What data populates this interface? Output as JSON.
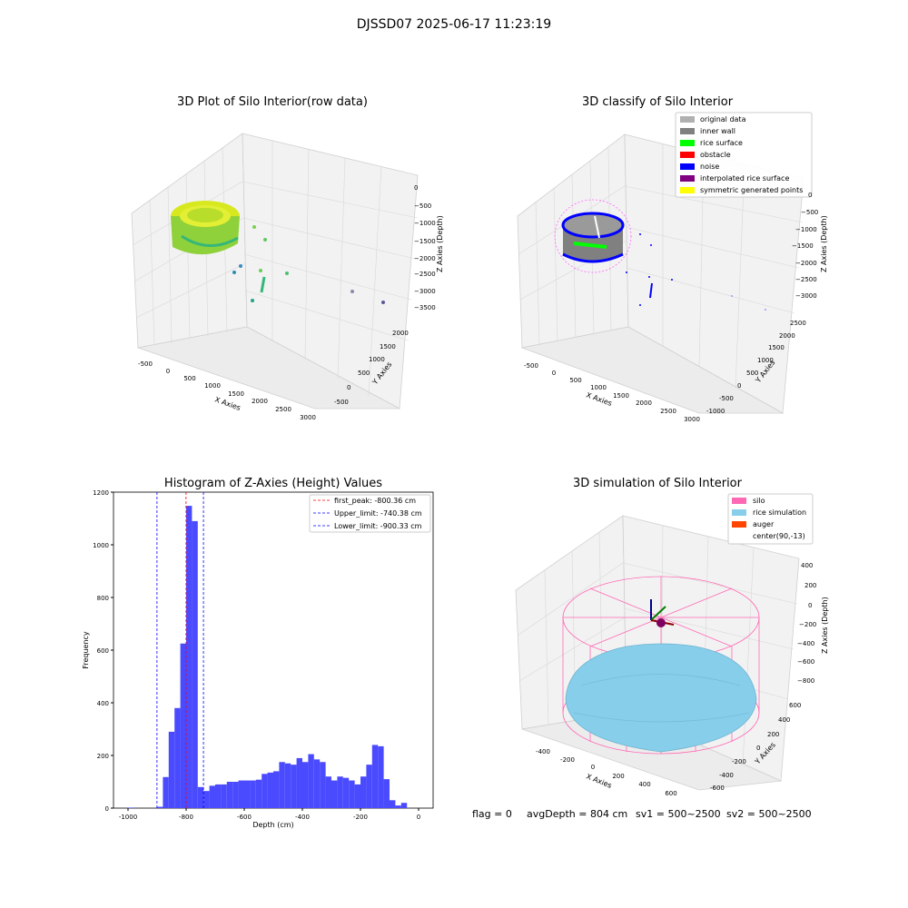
{
  "figure_title": "DJSSD07 2025-06-17 11:23:19",
  "panels": {
    "tl": {
      "title": "3D Plot of Silo Interior(row data)",
      "xlabel": "X Axies",
      "ylabel": "Y Axies",
      "zlabel": "Z Axies (Depth)",
      "xticks": [
        "-500",
        "0",
        "500",
        "1000",
        "1500",
        "2000",
        "2500",
        "3000"
      ],
      "yticks": [
        "-500",
        "0",
        "500",
        "1000",
        "1500",
        "2000"
      ],
      "zticks": [
        "0",
        "−500",
        "−1000",
        "−1500",
        "−2000",
        "−2500",
        "−3000",
        "−3500"
      ]
    },
    "tr": {
      "title": "3D classify of Silo Interior",
      "xlabel": "X Axies",
      "ylabel": "Y Axies",
      "zlabel": "Z Axies (Depth)",
      "xticks": [
        "-500",
        "0",
        "500",
        "1000",
        "1500",
        "2000",
        "2500",
        "3000"
      ],
      "yticks": [
        "-1000",
        "-500",
        "0",
        "500",
        "1000",
        "1500",
        "2000",
        "2500"
      ],
      "zticks": [
        "0",
        "−500",
        "−1000",
        "−1500",
        "−2000",
        "−2500",
        "−3000"
      ],
      "legend": [
        {
          "label": "original data",
          "color": "#b0b0b0"
        },
        {
          "label": "inner wall",
          "color": "#808080"
        },
        {
          "label": "rice surface",
          "color": "#00ff00"
        },
        {
          "label": "obstacle",
          "color": "#ff0000"
        },
        {
          "label": "noise",
          "color": "#0000ff"
        },
        {
          "label": "interpolated rice surface",
          "color": "#800080"
        },
        {
          "label": "symmetric generated points",
          "color": "#ffff00"
        }
      ]
    },
    "br": {
      "title": "3D simulation of Silo Interior",
      "xlabel": "X Axies",
      "ylabel": "Y Axies",
      "zlabel": "Z Axies (Depth)",
      "xticks": [
        "-400",
        "-200",
        "0",
        "200",
        "400",
        "600"
      ],
      "yticks": [
        "-600",
        "-400",
        "-200",
        "0",
        "200",
        "400",
        "600"
      ],
      "zticks": [
        "400",
        "200",
        "0",
        "−200",
        "−400",
        "−600",
        "−800"
      ],
      "legend": [
        {
          "label": "silo",
          "color": "#ff69b4"
        },
        {
          "label": "rice simulation",
          "color": "#87ceeb"
        },
        {
          "label": "auger",
          "color": "#ff4500"
        },
        {
          "label": "center(90,-13)",
          "color": ""
        }
      ]
    }
  },
  "status_line": {
    "flag": "flag = 0",
    "avg_depth": "avgDepth = 804 cm",
    "sv1": "sv1 = 500~2500",
    "sv2": "sv2 = 500~2500"
  },
  "chart_data": [
    {
      "type": "histogram",
      "title": "Histogram of Z-Axies (Height) Values",
      "xlabel": "Depth (cm)",
      "ylabel": "Frequency",
      "xlim": [
        -1050,
        50
      ],
      "ylim": [
        0,
        1200
      ],
      "xticks": [
        "-1000",
        "-800",
        "-600",
        "-400",
        "-200",
        "0"
      ],
      "yticks": [
        "0",
        "200",
        "400",
        "600",
        "800",
        "1000",
        "1200"
      ],
      "bar_color": "#4a4aff",
      "bin_edges": [
        -1000,
        -980,
        -960,
        -940,
        -920,
        -900,
        -880,
        -860,
        -840,
        -820,
        -800,
        -780,
        -760,
        -740,
        -720,
        -700,
        -680,
        -660,
        -640,
        -620,
        -600,
        -580,
        -560,
        -540,
        -520,
        -500,
        -480,
        -460,
        -440,
        -420,
        -400,
        -380,
        -360,
        -340,
        -320,
        -300,
        -280,
        -260,
        -240,
        -220,
        -200,
        -180,
        -160,
        -140,
        -120,
        -100,
        -80,
        -60,
        -40,
        -20,
        0,
        20
      ],
      "counts": [
        2,
        0,
        0,
        0,
        0,
        5,
        118,
        290,
        380,
        625,
        1148,
        1090,
        80,
        65,
        85,
        90,
        90,
        100,
        100,
        105,
        105,
        105,
        108,
        130,
        135,
        140,
        175,
        170,
        165,
        190,
        175,
        205,
        185,
        175,
        120,
        105,
        120,
        115,
        105,
        90,
        120,
        165,
        240,
        235,
        110,
        30,
        10,
        20,
        0,
        0,
        0
      ],
      "lines": [
        {
          "label": "first_peak: -800.36 cm",
          "value": -800.36,
          "color": "#ff0000"
        },
        {
          "label": "Upper_limit: -740.38 cm",
          "value": -740.38,
          "color": "#0000ff"
        },
        {
          "label": "Lower_limit: -900.33 cm",
          "value": -900.33,
          "color": "#0000ff"
        }
      ],
      "legend_position": "top-right"
    }
  ]
}
